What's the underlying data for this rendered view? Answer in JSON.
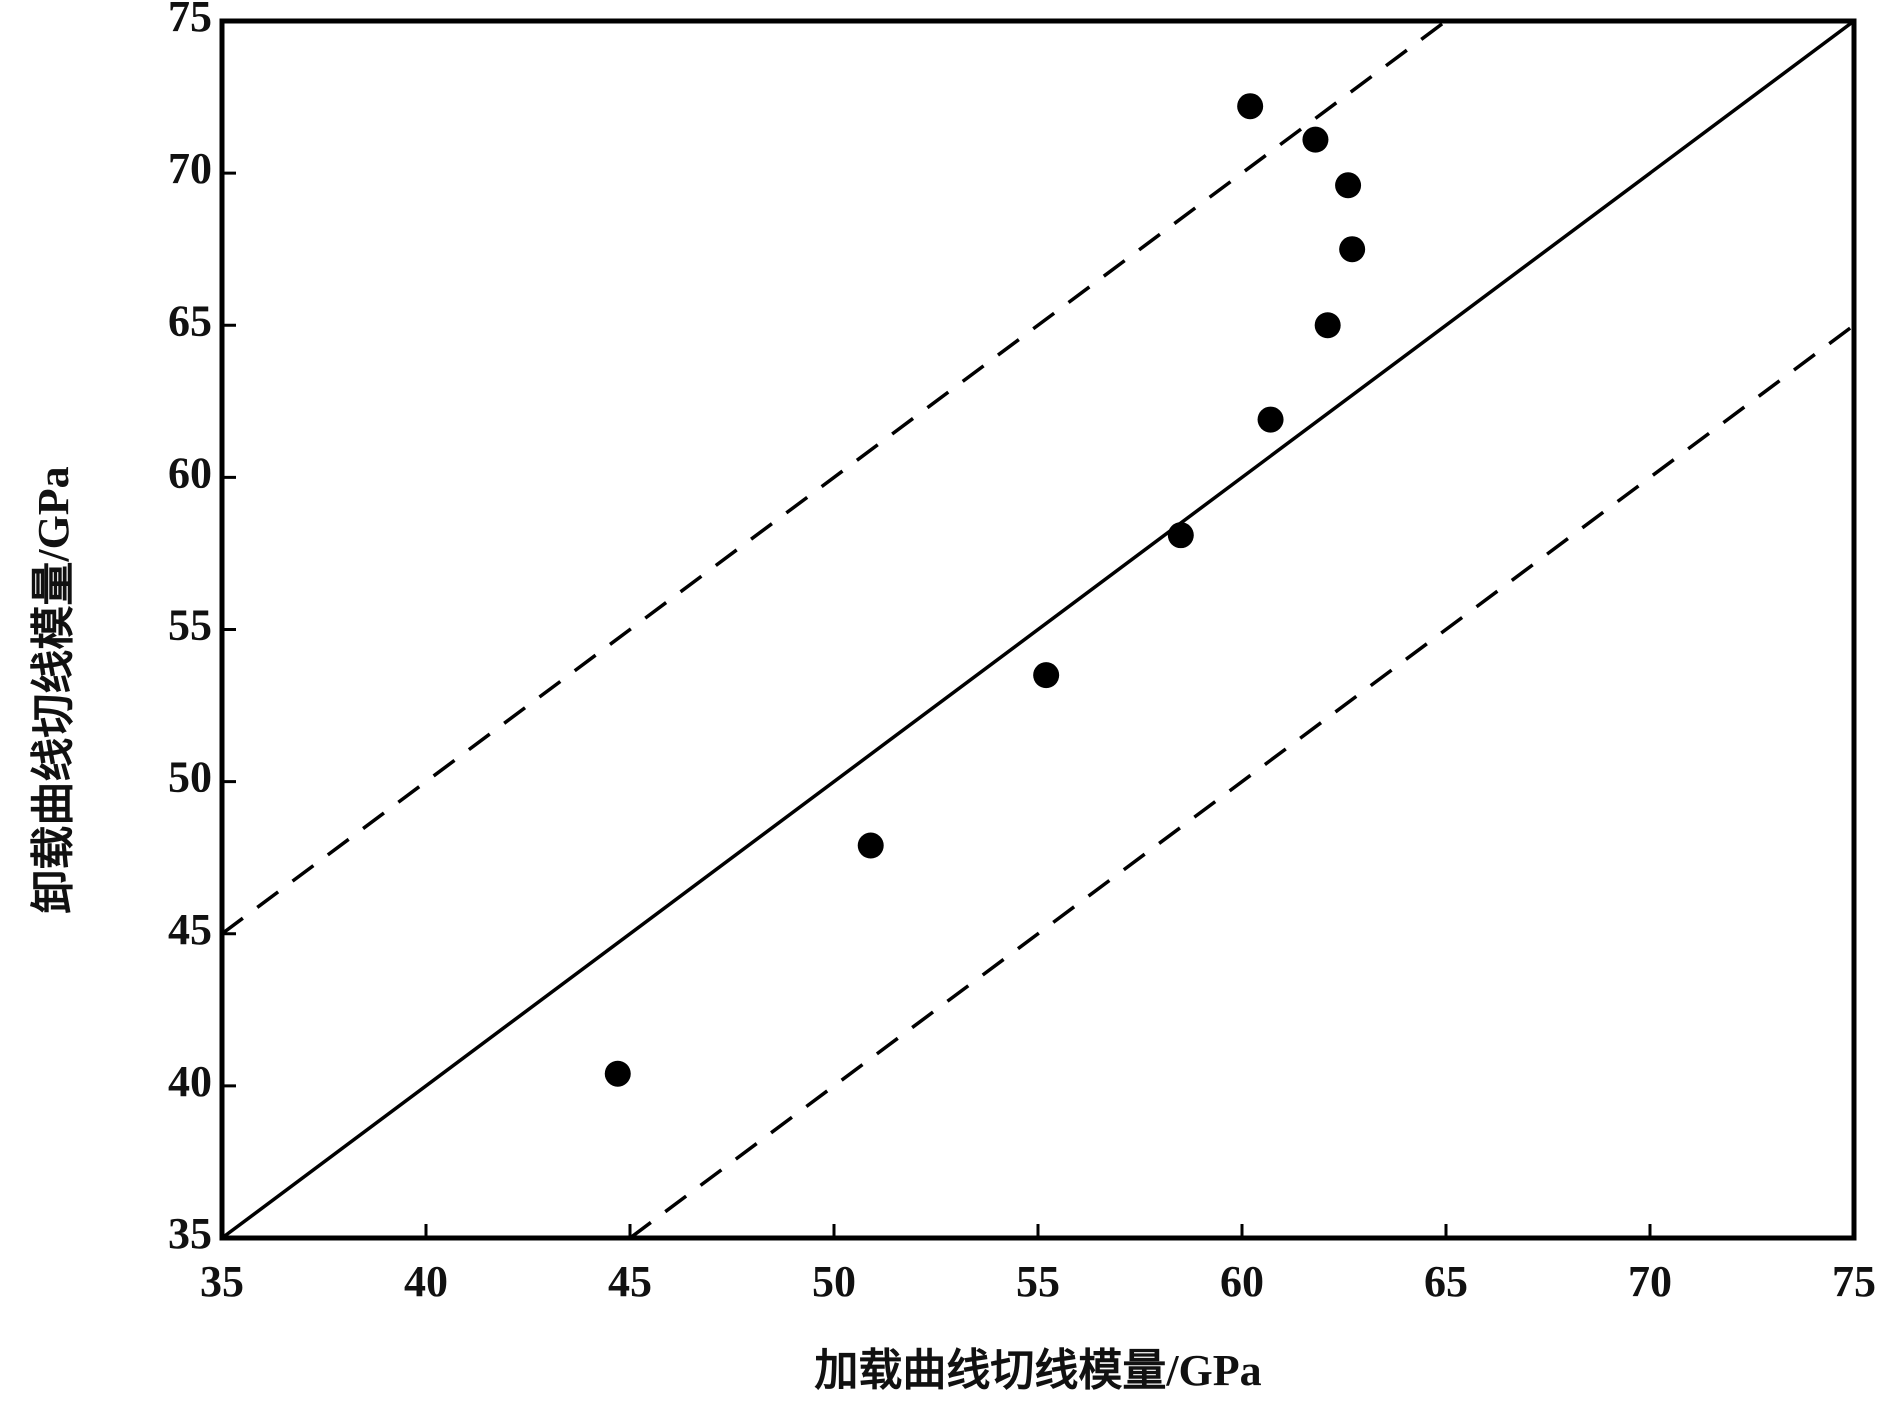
{
  "chart_data": {
    "type": "scatter",
    "x_label": "加载曲线切线模量/GPa",
    "y_label": "卸载曲线切线模量/GPa",
    "x": [
      44.7,
      50.9,
      55.2,
      58.5,
      60.7,
      62.1,
      62.7,
      62.6,
      61.8,
      60.2
    ],
    "values": [
      40.4,
      47.9,
      53.5,
      58.1,
      61.9,
      65.0,
      67.5,
      69.6,
      71.1,
      72.2
    ],
    "color": "#000000",
    "reference_lines": [
      {
        "style": "solid",
        "x": [
          35,
          75
        ],
        "y": [
          35,
          75
        ]
      },
      {
        "style": "dashed",
        "x": [
          35,
          65
        ],
        "y": [
          45,
          75
        ]
      },
      {
        "style": "dashed",
        "x": [
          45,
          75
        ],
        "y": [
          35,
          65
        ]
      }
    ],
    "xlim": [
      35,
      75
    ],
    "ylim": [
      35,
      75
    ],
    "xticks": [
      35,
      40,
      45,
      50,
      55,
      60,
      65,
      70,
      75
    ],
    "yticks": [
      35,
      40,
      45,
      50,
      55,
      60,
      65,
      70,
      75
    ],
    "grid": false
  }
}
